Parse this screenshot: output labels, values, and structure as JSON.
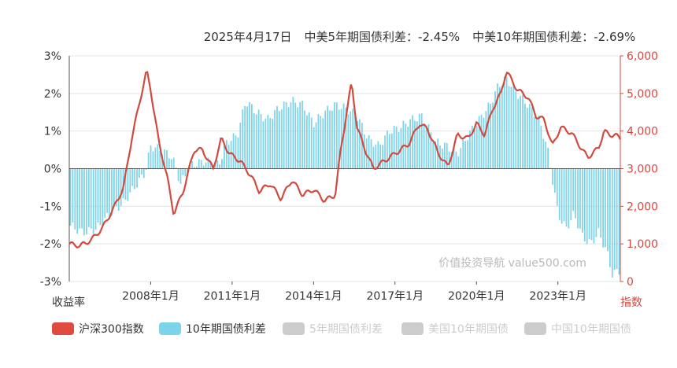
{
  "header": {
    "date": "2025年4月17日",
    "spread5_label": "中美5年期国债利差：",
    "spread5_value": "-2.45%",
    "spread10_label": "中美10年期国债利差：",
    "spread10_value": "-2.69%"
  },
  "watermark": "价值投资导航 value500.com",
  "colors": {
    "index_line": "#d14a3f",
    "spread_bars": "#7dd3e8",
    "inactive": "#cccccc",
    "axis_right": "#d14a3f"
  },
  "legend": [
    {
      "label": "沪深300指数",
      "color": "#e04a3f",
      "active": true
    },
    {
      "label": "10年期国债利差",
      "color": "#7dd3e8",
      "active": true
    },
    {
      "label": "5年期国债利差",
      "color": "#cccccc",
      "active": false
    },
    {
      "label": "美国10年期国债",
      "color": "#cccccc",
      "active": false
    },
    {
      "label": "中国10年期国债",
      "color": "#cccccc",
      "active": false
    }
  ],
  "chart_data": {
    "type": "bar+line",
    "x_range": [
      2005.0,
      2025.3
    ],
    "x_ticks": [
      {
        "year": 2008,
        "label": "2008年1月"
      },
      {
        "year": 2011,
        "label": "2011年1月"
      },
      {
        "year": 2014,
        "label": "2014年1月"
      },
      {
        "year": 2017,
        "label": "2017年1月"
      },
      {
        "year": 2020,
        "label": "2020年1月"
      },
      {
        "year": 2023,
        "label": "2023年1月"
      }
    ],
    "y_left": {
      "name": "收益率",
      "min": -3,
      "max": 3,
      "ticks": [
        {
          "v": 3,
          "label": "3%"
        },
        {
          "v": 2,
          "label": "2%"
        },
        {
          "v": 1,
          "label": "1%"
        },
        {
          "v": 0,
          "label": "0%"
        },
        {
          "v": -1,
          "label": "-1%"
        },
        {
          "v": -2,
          "label": "-2%"
        },
        {
          "v": -3,
          "label": "-3%"
        }
      ]
    },
    "y_right": {
      "name": "指数",
      "min": 0,
      "max": 6000,
      "ticks": [
        {
          "v": 6000,
          "label": "6,000"
        },
        {
          "v": 5000,
          "label": "5,000"
        },
        {
          "v": 4000,
          "label": "4,000"
        },
        {
          "v": 3000,
          "label": "3,000"
        },
        {
          "v": 2000,
          "label": "2,000"
        },
        {
          "v": 1000,
          "label": "1,000"
        },
        {
          "v": 0,
          "label": "0"
        }
      ]
    },
    "grid": true,
    "series": [
      {
        "name": "10年期国债利差",
        "kind": "bar",
        "axis": "left",
        "points": [
          [
            2005.0,
            -1.5
          ],
          [
            2005.5,
            -1.7
          ],
          [
            2006.0,
            -1.6
          ],
          [
            2006.5,
            -1.2
          ],
          [
            2007.0,
            -0.9
          ],
          [
            2007.4,
            -0.5
          ],
          [
            2007.8,
            -0.1
          ],
          [
            2008.0,
            0.6
          ],
          [
            2008.4,
            0.5
          ],
          [
            2008.8,
            0.3
          ],
          [
            2009.1,
            -0.4
          ],
          [
            2009.5,
            0.1
          ],
          [
            2010.0,
            0.2
          ],
          [
            2010.5,
            0.1
          ],
          [
            2010.8,
            0.7
          ],
          [
            2011.2,
            0.9
          ],
          [
            2011.5,
            1.8
          ],
          [
            2011.9,
            1.5
          ],
          [
            2012.3,
            1.3
          ],
          [
            2012.7,
            1.6
          ],
          [
            2013.2,
            1.8
          ],
          [
            2013.6,
            1.7
          ],
          [
            2014.0,
            1.2
          ],
          [
            2014.4,
            1.5
          ],
          [
            2014.8,
            1.7
          ],
          [
            2015.2,
            1.6
          ],
          [
            2015.6,
            1.4
          ],
          [
            2016.0,
            0.8
          ],
          [
            2016.4,
            0.6
          ],
          [
            2016.8,
            1.0
          ],
          [
            2017.2,
            1.1
          ],
          [
            2017.6,
            1.3
          ],
          [
            2018.0,
            1.4
          ],
          [
            2018.5,
            0.7
          ],
          [
            2018.9,
            0.6
          ],
          [
            2019.3,
            0.4
          ],
          [
            2019.7,
            0.9
          ],
          [
            2020.1,
            1.3
          ],
          [
            2020.5,
            1.7
          ],
          [
            2020.8,
            2.2
          ],
          [
            2021.1,
            2.4
          ],
          [
            2021.5,
            2.0
          ],
          [
            2021.9,
            1.7
          ],
          [
            2022.3,
            1.3
          ],
          [
            2022.6,
            0.6
          ],
          [
            2022.8,
            -0.3
          ],
          [
            2023.0,
            -1.2
          ],
          [
            2023.3,
            -1.6
          ],
          [
            2023.6,
            -1.2
          ],
          [
            2023.9,
            -1.8
          ],
          [
            2024.2,
            -2.0
          ],
          [
            2024.5,
            -1.7
          ],
          [
            2024.8,
            -2.2
          ],
          [
            2025.0,
            -2.8
          ],
          [
            2025.3,
            -2.7
          ]
        ]
      },
      {
        "name": "沪深300指数",
        "kind": "line",
        "axis": "right",
        "points": [
          [
            2005.0,
            1000
          ],
          [
            2005.4,
            950
          ],
          [
            2005.8,
            1100
          ],
          [
            2006.2,
            1400
          ],
          [
            2006.6,
            1900
          ],
          [
            2007.0,
            2500
          ],
          [
            2007.3,
            3800
          ],
          [
            2007.6,
            4800
          ],
          [
            2007.85,
            5600
          ],
          [
            2008.0,
            5100
          ],
          [
            2008.3,
            3700
          ],
          [
            2008.6,
            2800
          ],
          [
            2008.85,
            1800
          ],
          [
            2009.2,
            2400
          ],
          [
            2009.6,
            3500
          ],
          [
            2009.9,
            3500
          ],
          [
            2010.3,
            3000
          ],
          [
            2010.6,
            3800
          ],
          [
            2010.9,
            3400
          ],
          [
            2011.3,
            3200
          ],
          [
            2011.7,
            2800
          ],
          [
            2012.0,
            2400
          ],
          [
            2012.4,
            2600
          ],
          [
            2012.8,
            2200
          ],
          [
            2013.2,
            2700
          ],
          [
            2013.6,
            2300
          ],
          [
            2014.0,
            2450
          ],
          [
            2014.4,
            2150
          ],
          [
            2014.8,
            2300
          ],
          [
            2015.0,
            3500
          ],
          [
            2015.4,
            5300
          ],
          [
            2015.6,
            4100
          ],
          [
            2015.9,
            3500
          ],
          [
            2016.2,
            3000
          ],
          [
            2016.6,
            3200
          ],
          [
            2017.0,
            3400
          ],
          [
            2017.5,
            3650
          ],
          [
            2017.9,
            4200
          ],
          [
            2018.2,
            4050
          ],
          [
            2018.6,
            3400
          ],
          [
            2018.95,
            3050
          ],
          [
            2019.3,
            3900
          ],
          [
            2019.7,
            3800
          ],
          [
            2020.0,
            4200
          ],
          [
            2020.3,
            3900
          ],
          [
            2020.6,
            4600
          ],
          [
            2020.9,
            5000
          ],
          [
            2021.1,
            5600
          ],
          [
            2021.5,
            5100
          ],
          [
            2021.9,
            4900
          ],
          [
            2022.2,
            4400
          ],
          [
            2022.5,
            4300
          ],
          [
            2022.8,
            3600
          ],
          [
            2023.1,
            4100
          ],
          [
            2023.5,
            3950
          ],
          [
            2023.9,
            3500
          ],
          [
            2024.1,
            3300
          ],
          [
            2024.5,
            3550
          ],
          [
            2024.7,
            4000
          ],
          [
            2024.9,
            3900
          ],
          [
            2025.1,
            3900
          ],
          [
            2025.3,
            3800
          ]
        ]
      }
    ]
  }
}
